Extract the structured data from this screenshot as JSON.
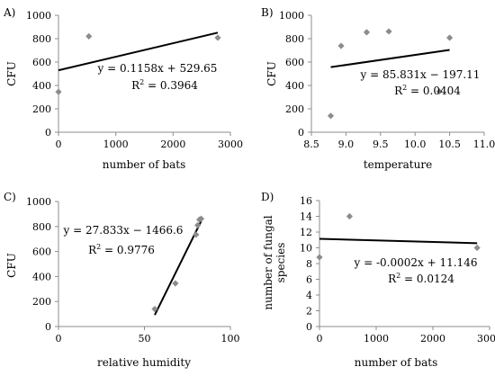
{
  "chart_data": [
    {
      "id": "A",
      "type": "scatter",
      "panel_label": "A)",
      "xlabel": "number of bats",
      "ylabel": "CFU",
      "xlim": [
        0,
        3000
      ],
      "ylim": [
        0,
        1000
      ],
      "xticks": [
        0,
        1000,
        2000,
        3000
      ],
      "yticks": [
        0,
        200,
        400,
        600,
        800,
        1000
      ],
      "points": [
        [
          0,
          345
        ],
        [
          530,
          820
        ],
        [
          2780,
          808
        ]
      ],
      "trendline": {
        "slope": 0.1158,
        "intercept": 529.65,
        "x_from": 0,
        "x_to": 2780
      },
      "equation": "y = 0.1158x + 529.65",
      "r2_label": "R",
      "r2_sup": "2",
      "r2_value": " = 0.3964",
      "grid": false
    },
    {
      "id": "B",
      "type": "scatter",
      "panel_label": "B)",
      "xlabel": "temperature",
      "ylabel": "CFU",
      "xlim": [
        8.5,
        11.0
      ],
      "ylim": [
        0,
        1000
      ],
      "xticks": [
        8.5,
        9.0,
        9.5,
        10.0,
        10.5,
        11.0
      ],
      "xtick_labels": [
        "8.5",
        "9.0",
        "9.5",
        "10.0",
        "10.5",
        "11.0"
      ],
      "yticks": [
        0,
        200,
        400,
        600,
        800,
        1000
      ],
      "points": [
        [
          8.78,
          140
        ],
        [
          8.93,
          738
        ],
        [
          9.3,
          855
        ],
        [
          9.62,
          862
        ],
        [
          10.35,
          348
        ],
        [
          10.5,
          808
        ]
      ],
      "trendline": {
        "slope": 85.831,
        "intercept": -197.11,
        "x_from": 8.78,
        "x_to": 10.5
      },
      "equation": "y = 85.831x − 197.11",
      "r2_label": "R",
      "r2_sup": "2",
      "r2_value": " = 0.0404",
      "grid": false
    },
    {
      "id": "C",
      "type": "scatter",
      "panel_label": "C)",
      "xlabel": "relative humidity",
      "ylabel": "CFU",
      "xlim": [
        0,
        100
      ],
      "ylim": [
        0,
        1000
      ],
      "xticks": [
        0,
        50,
        100
      ],
      "yticks": [
        0,
        200,
        400,
        600,
        800,
        1000
      ],
      "points": [
        [
          56,
          140
        ],
        [
          68,
          345
        ],
        [
          80,
          735
        ],
        [
          81,
          810
        ],
        [
          82,
          855
        ],
        [
          83,
          862
        ]
      ],
      "trendline": {
        "slope": 27.833,
        "intercept": -1466.6,
        "x_from": 56,
        "x_to": 83
      },
      "equation": "y = 27.833x − 1466.6",
      "r2_label": "R",
      "r2_sup": "2",
      "r2_value": " = 0.9776",
      "grid": false
    },
    {
      "id": "D",
      "type": "scatter",
      "panel_label": "D)",
      "xlabel": "number of bats",
      "ylabel": "number of fungal species",
      "ylabel_lines": [
        "number of fungal",
        "species"
      ],
      "xlim": [
        0,
        3000
      ],
      "ylim": [
        0,
        16
      ],
      "xticks": [
        0,
        1000,
        2000,
        3000
      ],
      "yticks": [
        0,
        2,
        4,
        6,
        8,
        10,
        12,
        14,
        16
      ],
      "points": [
        [
          0,
          8.8
        ],
        [
          530,
          14.0
        ],
        [
          2780,
          10.0
        ]
      ],
      "trendline": {
        "slope": -0.0002,
        "intercept": 11.146,
        "x_from": 0,
        "x_to": 2780
      },
      "equation": "y = -0.0002x + 11.146",
      "r2_label": "R",
      "r2_sup": "2",
      "r2_value": " = 0.0124",
      "grid": false
    }
  ],
  "colors": {
    "marker": "#8c8c8c",
    "axis": "#8c8c8c",
    "trendline": "#000000",
    "text": "#000000"
  }
}
